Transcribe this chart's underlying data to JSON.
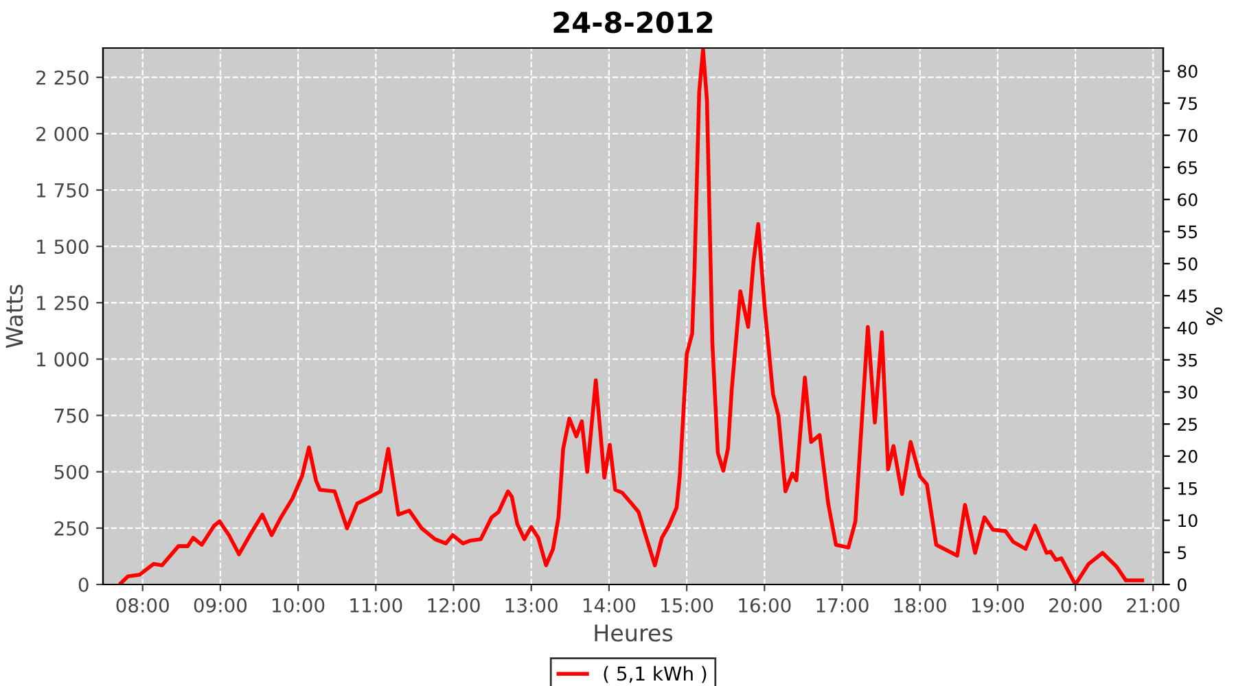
{
  "chart_data": {
    "type": "line",
    "title": "24-8-2012",
    "xlabel": "Heures",
    "ylabel": "Watts",
    "y2label": "%",
    "xlim": [
      7.49,
      21.13
    ],
    "xticks": [
      {
        "value": 8,
        "label": "08:00"
      },
      {
        "value": 9,
        "label": "09:00"
      },
      {
        "value": 10,
        "label": "10:00"
      },
      {
        "value": 11,
        "label": "11:00"
      },
      {
        "value": 12,
        "label": "12:00"
      },
      {
        "value": 13,
        "label": "13:00"
      },
      {
        "value": 14,
        "label": "14:00"
      },
      {
        "value": 15,
        "label": "15:00"
      },
      {
        "value": 16,
        "label": "16:00"
      },
      {
        "value": 17,
        "label": "17:00"
      },
      {
        "value": 18,
        "label": "18:00"
      },
      {
        "value": 19,
        "label": "19:00"
      },
      {
        "value": 20,
        "label": "20:00"
      },
      {
        "value": 21,
        "label": "21:00"
      }
    ],
    "ylim": [
      0,
      2380
    ],
    "yticks": [
      0,
      250,
      500,
      750,
      {
        "value": 1000,
        "label": "1 000"
      },
      {
        "value": 1250,
        "label": "1 250"
      },
      {
        "value": 1500,
        "label": "1 500"
      },
      {
        "value": 1750,
        "label": "1 750"
      },
      {
        "value": 2000,
        "label": "2 000"
      },
      {
        "value": 2250,
        "label": "2 250"
      }
    ],
    "y2lim": [
      0,
      83.6
    ],
    "y2ticks": [
      0,
      5,
      10,
      15,
      20,
      25,
      30,
      35,
      40,
      45,
      50,
      55,
      60,
      65,
      70,
      75,
      80
    ],
    "grid": true,
    "legend": "bottom",
    "marker": "none",
    "line_style": "solid",
    "series": [
      {
        "name": "( 5,1 kWh )",
        "color": "#ff0000",
        "x": [
          7.72,
          7.81,
          7.96,
          8.14,
          8.25,
          8.46,
          8.58,
          8.65,
          8.76,
          8.92,
          8.99,
          9.11,
          9.24,
          9.38,
          9.54,
          9.66,
          9.78,
          9.93,
          10.05,
          10.14,
          10.23,
          10.28,
          10.47,
          10.63,
          10.76,
          10.9,
          11.06,
          11.16,
          11.29,
          11.43,
          11.59,
          11.76,
          11.9,
          11.99,
          12.12,
          12.22,
          12.35,
          12.49,
          12.58,
          12.7,
          12.75,
          12.82,
          12.91,
          13.0,
          13.09,
          13.19,
          13.28,
          13.35,
          13.41,
          13.49,
          13.58,
          13.65,
          13.72,
          13.83,
          13.94,
          14.01,
          14.08,
          14.17,
          14.29,
          14.38,
          14.47,
          14.59,
          14.68,
          14.77,
          14.87,
          14.91,
          15.0,
          15.07,
          15.1,
          15.16,
          15.21,
          15.26,
          15.33,
          15.4,
          15.47,
          15.53,
          15.58,
          15.69,
          15.79,
          15.86,
          15.92,
          16.0,
          16.11,
          16.18,
          16.27,
          16.36,
          16.41,
          16.52,
          16.6,
          16.71,
          16.82,
          16.92,
          17.08,
          17.17,
          17.33,
          17.42,
          17.51,
          17.59,
          17.66,
          17.77,
          17.88,
          18.0,
          18.09,
          18.21,
          18.48,
          18.58,
          18.71,
          18.83,
          18.94,
          19.1,
          19.2,
          19.36,
          19.48,
          19.63,
          19.68,
          19.75,
          19.82,
          20.0,
          20.17,
          20.35,
          20.53,
          20.65,
          20.86
        ],
        "values": [
          6,
          36,
          43,
          91,
          85,
          170,
          170,
          207,
          176,
          261,
          280,
          219,
          134,
          219,
          310,
          219,
          298,
          383,
          480,
          608,
          462,
          420,
          413,
          249,
          359,
          383,
          413,
          602,
          310,
          328,
          249,
          201,
          182,
          219,
          182,
          195,
          201,
          298,
          322,
          413,
          389,
          268,
          201,
          255,
          207,
          85,
          158,
          298,
          602,
          736,
          657,
          724,
          499,
          906,
          474,
          620,
          420,
          407,
          359,
          322,
          219,
          85,
          207,
          261,
          341,
          480,
          1022,
          1113,
          1393,
          2183,
          2375,
          2147,
          1070,
          584,
          505,
          602,
          870,
          1301,
          1143,
          1435,
          1599,
          1241,
          845,
          748,
          413,
          493,
          462,
          918,
          632,
          663,
          359,
          176,
          164,
          280,
          1143,
          718,
          1119,
          511,
          614,
          401,
          632,
          480,
          444,
          176,
          128,
          353,
          140,
          298,
          243,
          237,
          189,
          158,
          261,
          140,
          146,
          109,
          116,
          0,
          91,
          140,
          79,
          18,
          18
        ]
      }
    ]
  }
}
